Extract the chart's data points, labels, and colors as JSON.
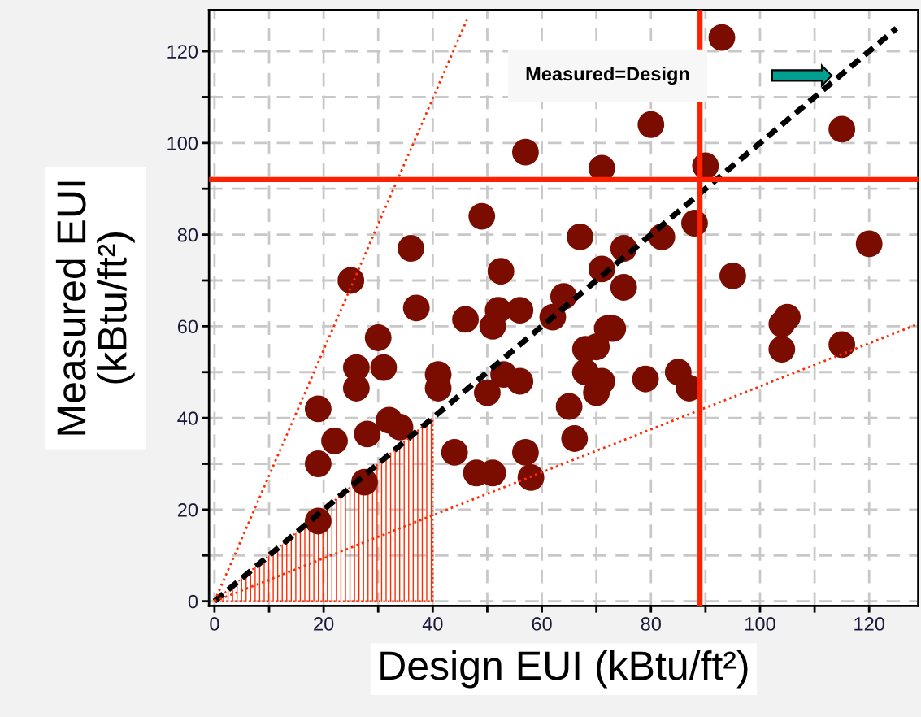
{
  "chart_data": {
    "type": "scatter",
    "xlabel": "Design EUI (kBtu/ft²)",
    "ylabel": "Measured EUI\n(kBtu/ft²)",
    "xlim": [
      -1,
      129
    ],
    "ylim": [
      -1,
      129
    ],
    "xticks": [
      0,
      {
        "value": 10,
        "label": null
      },
      20,
      {
        "value": 30,
        "label": null
      },
      40,
      {
        "value": 50,
        "label": null
      },
      60,
      {
        "value": 70,
        "label": null
      },
      80,
      {
        "value": 90,
        "label": null
      },
      100,
      {
        "value": 110,
        "label": null
      },
      120
    ],
    "yticks": [
      0,
      {
        "value": 10,
        "label": null
      },
      20,
      {
        "value": 30,
        "label": null
      },
      40,
      {
        "value": 50,
        "label": null
      },
      60,
      {
        "value": 70,
        "label": null
      },
      80,
      {
        "value": 90,
        "label": null
      },
      100,
      {
        "value": 110,
        "label": null
      },
      120
    ],
    "grid": true,
    "series": [
      {
        "type": "area",
        "color": "#ff2a00",
        "x": [
          0,
          40
        ],
        "values": [
          0,
          40
        ]
      },
      {
        "color": "#7b0c00",
        "marker": "circle",
        "x": [
          93,
          80,
          115,
          57,
          71,
          90,
          49,
          88,
          67,
          82,
          75,
          120,
          36,
          71,
          52.5,
          95,
          25,
          75,
          64,
          37,
          62,
          52,
          56,
          46,
          51,
          72,
          73,
          104,
          105,
          104,
          115,
          30,
          26,
          31,
          68,
          70,
          68,
          71,
          70,
          79,
          85,
          87,
          41,
          41,
          53,
          56,
          50,
          26,
          65,
          19,
          32,
          34,
          22,
          28,
          66,
          44,
          57,
          19,
          48,
          51,
          58,
          27.5,
          19
        ],
        "values": [
          123,
          104,
          103,
          98,
          94.5,
          95,
          84,
          82.5,
          79.5,
          79.5,
          77,
          78,
          77,
          72.5,
          72,
          71,
          70,
          68.5,
          66.5,
          64,
          62,
          63.5,
          63.5,
          61.5,
          60,
          59.5,
          59.5,
          60.5,
          62,
          55,
          56,
          57.5,
          51,
          51,
          55,
          55.5,
          50,
          48,
          45.5,
          48.5,
          50,
          46.5,
          49.5,
          46.5,
          49.5,
          48,
          45.5,
          46.5,
          42.5,
          42,
          39.5,
          38,
          35,
          36.5,
          35.5,
          32.5,
          32.5,
          30,
          28,
          28,
          27,
          26,
          17.5
        ]
      },
      {
        "type": "line",
        "color": "#000000",
        "line_style": "dashed",
        "x": [
          0,
          125
        ],
        "values": [
          0,
          125
        ]
      },
      {
        "type": "line",
        "color": "#ff2a00",
        "line_style": "dotted",
        "x": [
          0,
          46.5
        ],
        "values": [
          0,
          127.5
        ]
      },
      {
        "type": "line",
        "color": "#ff2a00",
        "line_style": "dotted",
        "x": [
          0,
          129
        ],
        "values": [
          0,
          60.5
        ]
      }
    ],
    "ref_lines": [
      {
        "axis": "x",
        "value": 89,
        "color": "#ff2200"
      },
      {
        "axis": "y",
        "value": 92,
        "color": "#ff2200"
      }
    ],
    "annotations": [
      "Measured=Design"
    ]
  }
}
